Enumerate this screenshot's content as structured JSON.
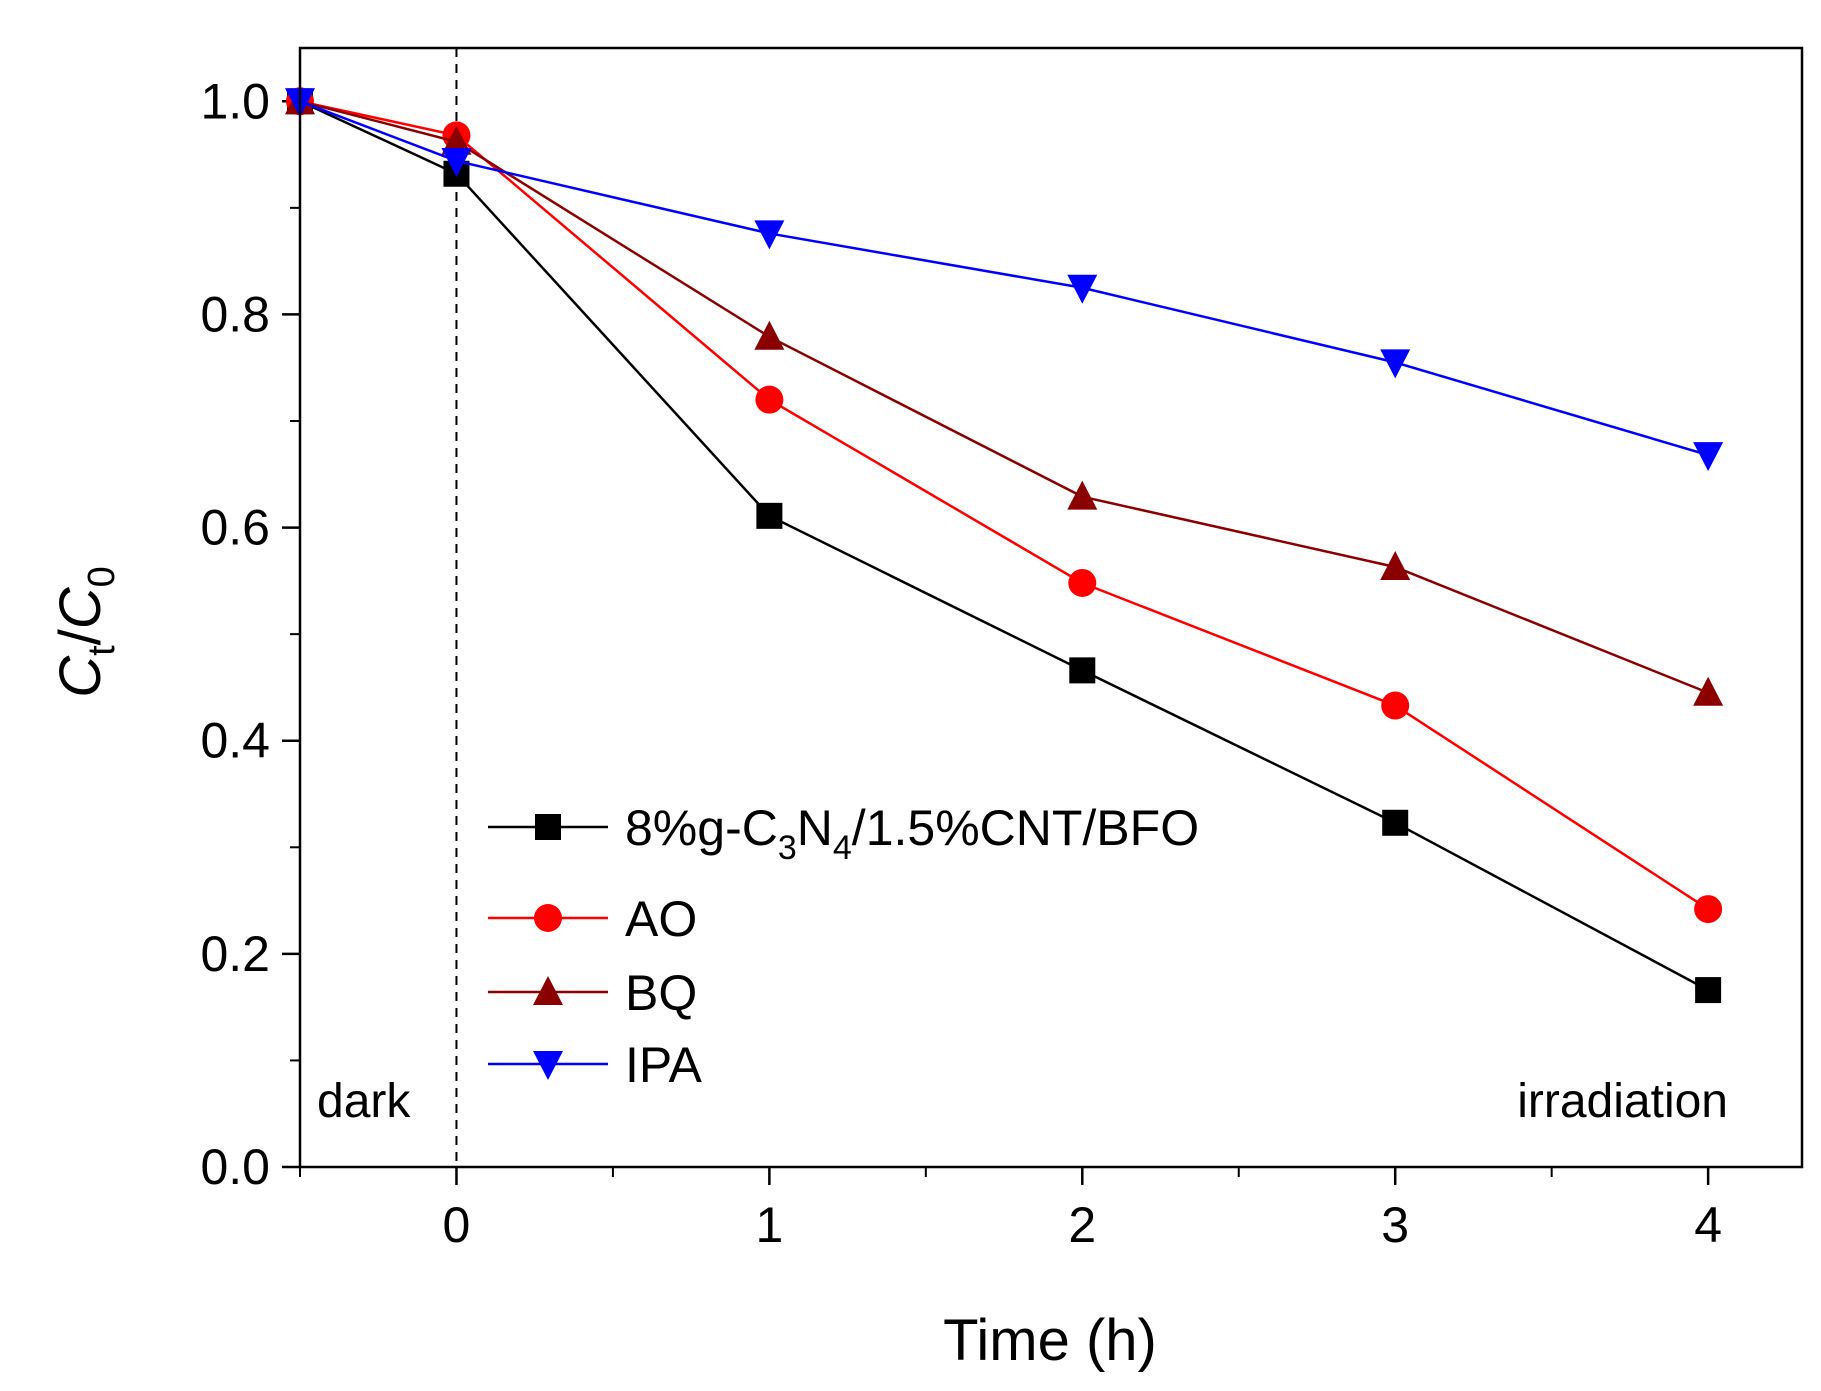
{
  "chart_data": {
    "type": "line",
    "xlabel": "Time (h)",
    "ylabel": {
      "base": "C",
      "sub_t": "t",
      "slash": "/",
      "base2": "C",
      "sub_0": "0"
    },
    "xlim": [
      -0.5,
      4.3
    ],
    "ylim": [
      0.0,
      1.05
    ],
    "x_ticks": [
      0,
      1,
      2,
      3,
      4
    ],
    "x_tick_labels": [
      "0",
      "1",
      "2",
      "3",
      "4"
    ],
    "x_minor_ticks": [
      -0.5,
      0.5,
      1.5,
      2.5,
      3.5
    ],
    "y_ticks": [
      0.0,
      0.2,
      0.4,
      0.6,
      0.8,
      1.0
    ],
    "y_tick_labels": [
      "0.0",
      "0.2",
      "0.4",
      "0.6",
      "0.8",
      "1.0"
    ],
    "y_minor_ticks": [
      0.1,
      0.3,
      0.5,
      0.7,
      0.9
    ],
    "grid": false,
    "x": [
      -0.5,
      0,
      1,
      2,
      3,
      4
    ],
    "dark_boundary_x": 0,
    "annotations": {
      "dark": "dark",
      "irradiation": "irradiation"
    },
    "series": [
      {
        "name": "8%g-C3N4/1.5%CNT/BFO",
        "legend_parts": [
          "8%g-C",
          "3",
          "N",
          "4",
          "/1.5%CNT/BFO"
        ],
        "color": "#000000",
        "marker": "square",
        "values": [
          1.0,
          0.932,
          0.611,
          0.466,
          0.323,
          0.166
        ]
      },
      {
        "name": "AO",
        "color": "#ff0000",
        "marker": "circle",
        "values": [
          1.0,
          0.968,
          0.72,
          0.548,
          0.433,
          0.242
        ]
      },
      {
        "name": "BQ",
        "color": "#8b0000",
        "marker": "triangle-up",
        "values": [
          1.0,
          0.962,
          0.779,
          0.629,
          0.563,
          0.445
        ]
      },
      {
        "name": "IPA",
        "color": "#0000ff",
        "marker": "triangle-down",
        "values": [
          1.0,
          0.944,
          0.876,
          0.825,
          0.755,
          0.668
        ]
      }
    ],
    "legend_position": "lower-left"
  }
}
